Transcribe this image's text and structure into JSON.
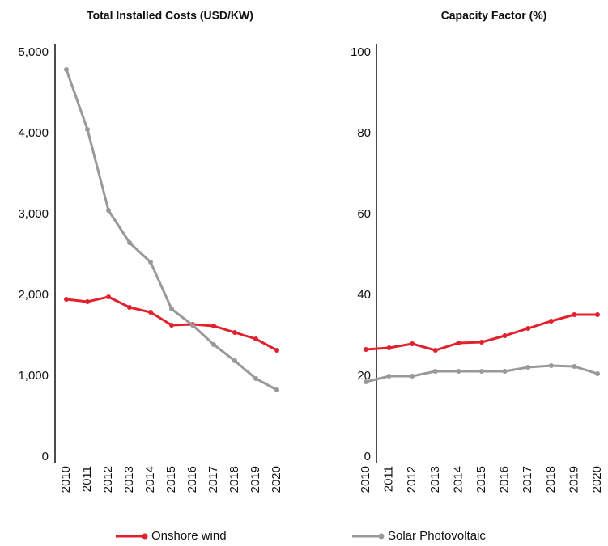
{
  "chart_data": [
    {
      "type": "line",
      "title": "Total Installed Costs (USD/KW)",
      "categories": [
        "2010",
        "2011",
        "2012",
        "2013",
        "2014",
        "2015",
        "2016",
        "2017",
        "2018",
        "2019",
        "2020"
      ],
      "ylim": [
        0,
        5000
      ],
      "yticks": [
        0,
        {
          "value": 1000,
          "label": "1,000"
        },
        {
          "value": 2000,
          "label": "2,000"
        },
        {
          "value": 3000,
          "label": "3,000"
        },
        {
          "value": 4000,
          "label": "4,000"
        },
        {
          "value": 5000,
          "label": "5,000"
        }
      ],
      "series": [
        {
          "name": "Onshore wind",
          "color": "#e3202e",
          "values": [
            1950,
            1920,
            1980,
            1850,
            1790,
            1630,
            1640,
            1620,
            1540,
            1460,
            1320
          ]
        },
        {
          "name": "Solar Photovoltaic",
          "color": "#999999",
          "values": [
            4790,
            4050,
            3050,
            2650,
            2410,
            1830,
            1630,
            1390,
            1190,
            970,
            830
          ]
        }
      ]
    },
    {
      "type": "line",
      "title": "Capacity Factor (%)",
      "categories": [
        "2010",
        "2011",
        "2012",
        "2013",
        "2014",
        "2015",
        "2016",
        "2017",
        "2018",
        "2019",
        "2020"
      ],
      "ylim": [
        0,
        100
      ],
      "yticks": [
        0,
        20,
        40,
        60,
        80,
        100
      ],
      "series": [
        {
          "name": "Onshore wind",
          "color": "#e3202e",
          "values": [
            26.6,
            27,
            28,
            26.4,
            28.2,
            28.4,
            30,
            31.8,
            33.6,
            35.2,
            35.2
          ]
        },
        {
          "name": "Solar Photovoltaic",
          "color": "#999999",
          "values": [
            18.6,
            20,
            20,
            21.2,
            21.2,
            21.2,
            21.2,
            22.2,
            22.6,
            22.4,
            20.6
          ]
        }
      ]
    }
  ]
}
